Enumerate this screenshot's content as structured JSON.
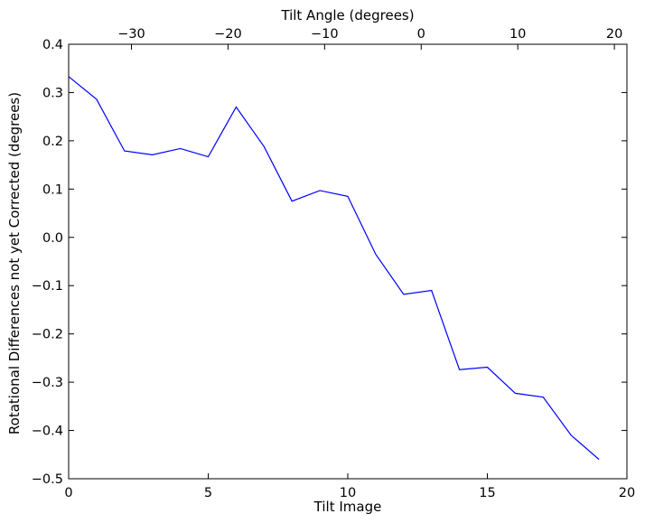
{
  "chart_data": {
    "type": "line",
    "xlabel": "Tilt Image",
    "ylabel": "Rotational Differences not yet Corrected (degrees)",
    "top_xlabel": "Tilt Angle (degrees)",
    "xlim": [
      0,
      20
    ],
    "ylim": [
      -0.5,
      0.4
    ],
    "xticks": [
      0,
      5,
      10,
      15,
      20
    ],
    "xtick_labels": [
      "0",
      "5",
      "10",
      "15",
      "20"
    ],
    "yticks": [
      -0.5,
      -0.4,
      -0.3,
      -0.2,
      -0.1,
      0.0,
      0.1,
      0.2,
      0.3,
      0.4
    ],
    "ytick_labels": [
      "−0.5",
      "−0.4",
      "−0.3",
      "−0.2",
      "−0.1",
      "0.0",
      "0.1",
      "0.2",
      "0.3",
      "0.4"
    ],
    "top_xlim": [
      -36.5,
      21.3
    ],
    "top_xticks": [
      -30,
      -20,
      -10,
      0,
      10,
      20
    ],
    "top_xtick_labels": [
      "−30",
      "−20",
      "−10",
      "0",
      "10",
      "20"
    ],
    "grid": false,
    "series": [
      {
        "color": "#0000ff",
        "x": [
          0,
          1,
          2,
          3,
          4,
          5,
          6,
          7,
          8,
          9,
          10,
          11,
          12,
          13,
          14,
          15,
          16,
          17,
          18,
          19
        ],
        "y": [
          0.333,
          0.286,
          0.179,
          0.171,
          0.184,
          0.167,
          0.27,
          0.188,
          0.075,
          0.097,
          0.085,
          -0.035,
          -0.118,
          -0.11,
          -0.274,
          -0.269,
          -0.323,
          -0.331,
          -0.41,
          -0.46
        ]
      }
    ]
  }
}
